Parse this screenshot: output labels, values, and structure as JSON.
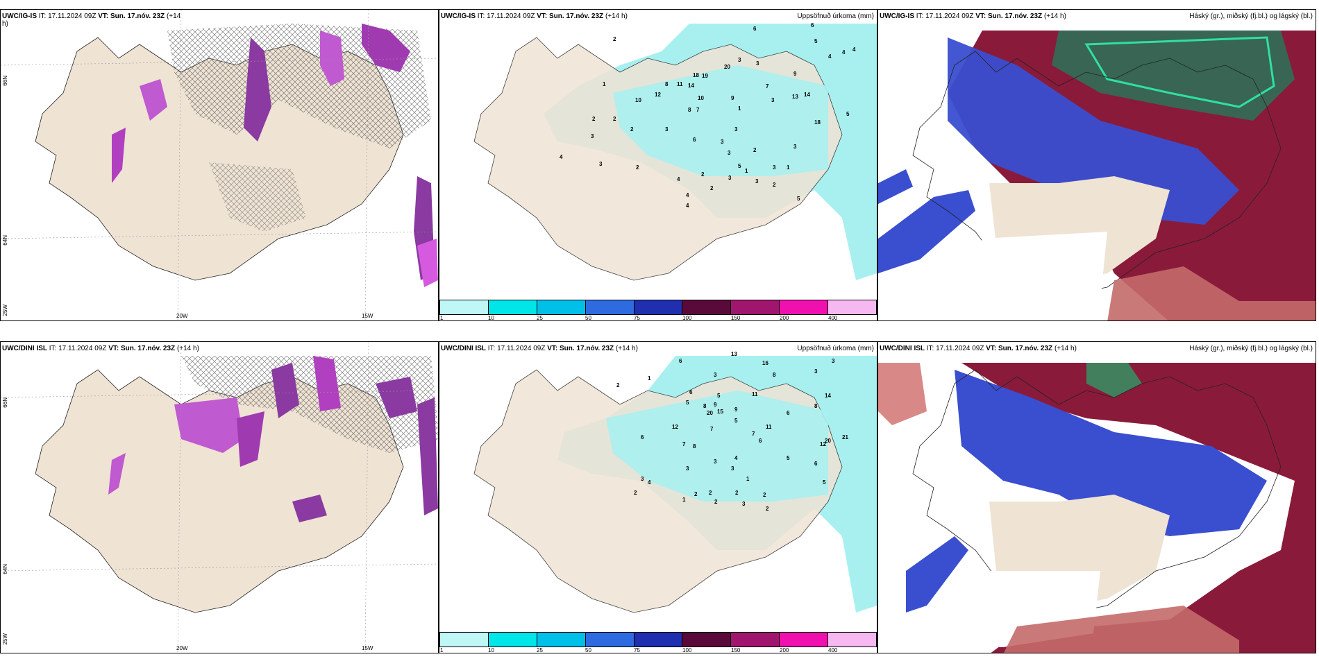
{
  "panels": {
    "p1": {
      "title_model": "UWC/IG-IS",
      "title_rest": " IT: 17.11.2024 09Z ",
      "title_vt": "VT: Sun. 17.nóv. 23Z",
      "title_lead": " (+14",
      "title_lead2": "h)",
      "lat_labels": [
        "66N",
        "64N"
      ],
      "lon_labels": [
        "25W",
        "20W",
        "15W"
      ]
    },
    "p2": {
      "title_model": "UWC/IG-IS",
      "title_rest": " IT: 17.11.2024 09Z ",
      "title_vt": "VT: Sun. 17.nóv. 23Z",
      "title_lead": " (+14 h)",
      "right_title": "Uppsöfnuð úrkoma (mm)",
      "numbers": [
        "6",
        "6",
        "5",
        "4",
        "4",
        "4",
        "2",
        "3",
        "20",
        "8",
        "11",
        "14",
        "18",
        "19",
        "1",
        "12",
        "10",
        "9",
        "7",
        "10",
        "8",
        "1",
        "7",
        "9",
        "3",
        "13",
        "14",
        "3",
        "5",
        "3",
        "3",
        "6",
        "3",
        "2",
        "3",
        "18",
        "5",
        "3",
        "4",
        "3",
        "2",
        "4",
        "2",
        "3",
        "1",
        "2",
        "3",
        "2",
        "2",
        "3",
        "2",
        "4",
        "1",
        "3",
        "4",
        "5",
        "2"
      ]
    },
    "p3": {
      "title_model": "UWC/IG-IS",
      "title_rest": " IT: 17.11.2024 09Z ",
      "title_vt": "VT: Sun. 17.nóv. 23Z",
      "title_lead": " (+14 h)",
      "right_title": "Háský (gr.), miðský (fj.bl.) og lágský (bl.)"
    },
    "p4": {
      "title_model": "UWC/DINI ISL",
      "title_rest": " IT: 17.11.2024 09Z ",
      "title_vt": "VT: Sun. 17.nóv. 23Z",
      "title_lead": " (+14 h)",
      "lat_labels": [
        "66N",
        "64N",
        "25W"
      ],
      "lon_labels": [
        "20W",
        "15W"
      ]
    },
    "p5": {
      "title_model": "UWC/DINI ISL",
      "title_rest": " IT: 17.11.2024 09Z ",
      "title_vt": "VT: Sun. 17.nóv. 23Z",
      "title_lead": " (+14 h)",
      "right_title": "Uppsöfnuð úrkoma (mm)",
      "numbers": [
        "2",
        "6",
        "13",
        "3",
        "1",
        "3",
        "3",
        "16",
        "8",
        "11",
        "5",
        "5",
        "6",
        "8",
        "9",
        "15",
        "20",
        "12",
        "9",
        "5",
        "6",
        "14",
        "8",
        "11",
        "7",
        "6",
        "12",
        "7",
        "8",
        "7",
        "20",
        "21",
        "5",
        "3",
        "3",
        "4",
        "6",
        "3",
        "2",
        "4",
        "1",
        "2",
        "2",
        "3",
        "2",
        "2",
        "1",
        "2",
        "2",
        "3",
        "5",
        "6"
      ]
    },
    "p6": {
      "title_model": "UWC/DINI ISL",
      "title_rest": " IT: 17.11.2024 09Z ",
      "title_vt": "VT: Sun. 17.nóv. 23Z",
      "title_lead": " (+14 h)",
      "right_title": "Háský (gr.), miðský (fj.bl.) og lágský (bl.)"
    }
  },
  "colorbar": {
    "ticks": [
      "1",
      "10",
      "25",
      "50",
      "75",
      "100",
      "150",
      "200",
      "400"
    ],
    "colors": [
      "#bff6f6",
      "#00e5e8",
      "#00bfe8",
      "#2f6be0",
      "#1f2fb0",
      "#5a0a3a",
      "#a0166e",
      "#f010b0",
      "#f6b8f0"
    ]
  },
  "colors": {
    "land": "#efe3d4",
    "precip_light": "#a8f0f0",
    "precip_dark": "#8a3aa0",
    "precip_bright": "#d65ae0",
    "high_cloud": "#2fa874",
    "mid_cloud": "#8a1a3a",
    "low_cloud": "#3a4ed0"
  }
}
